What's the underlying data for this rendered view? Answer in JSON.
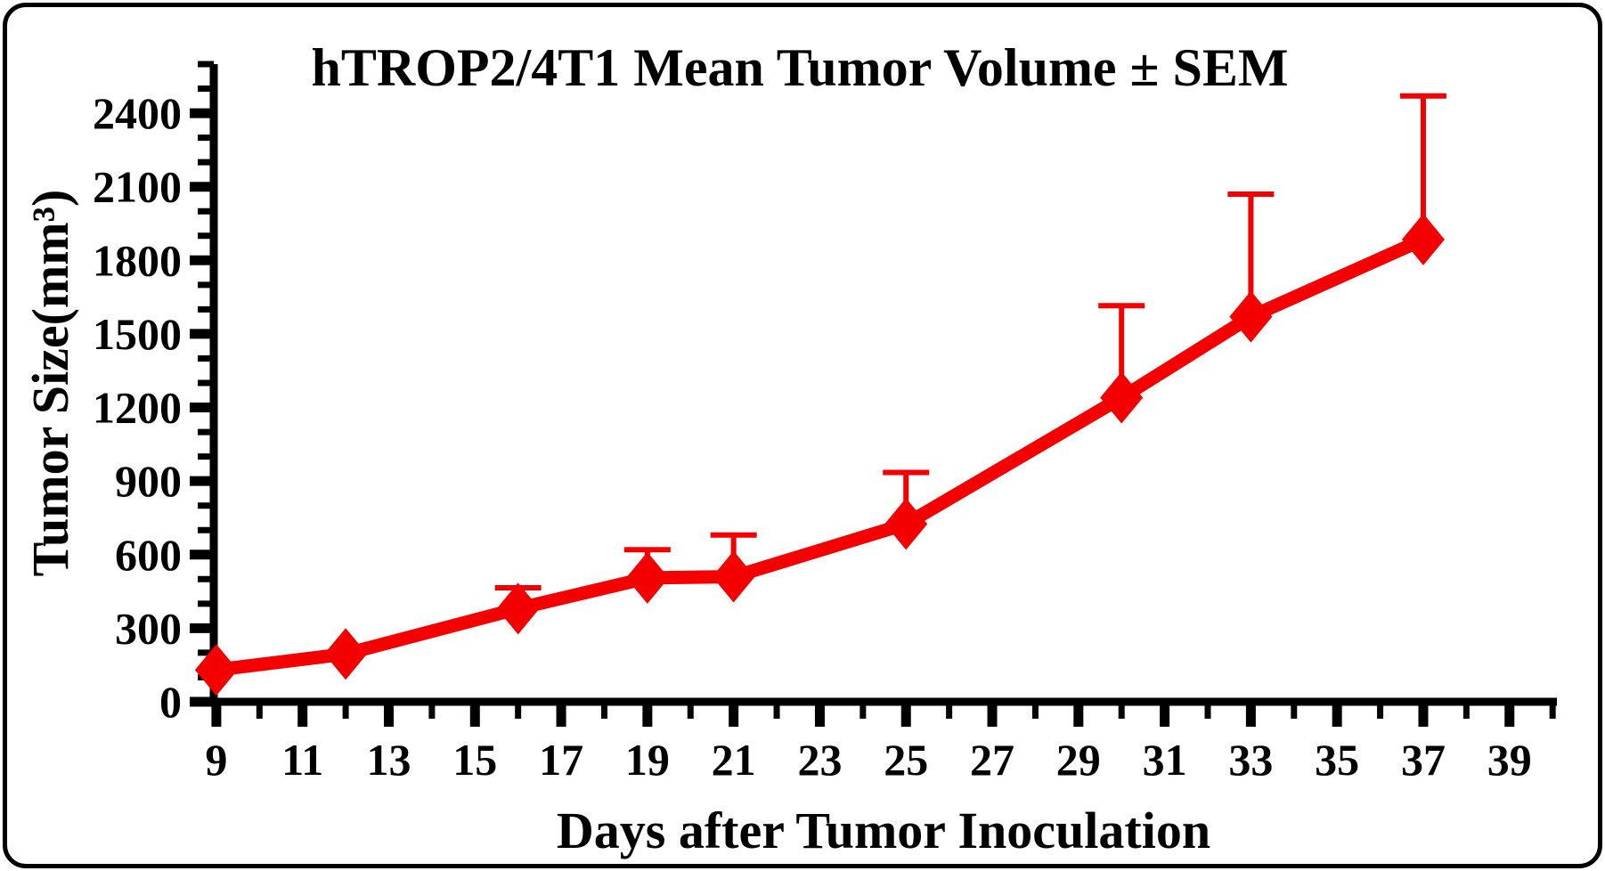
{
  "chart_data": {
    "type": "line",
    "title": "hTROP2/4T1 Mean Tumor Volume ± SEM",
    "xlabel": "Days after Tumor Inoculation",
    "ylabel": "Tumor Size(mm³)",
    "x": [
      9,
      12,
      16,
      19,
      21,
      25,
      30,
      33,
      37
    ],
    "series": [
      {
        "name": "hTROP2/4T1 mean tumor volume",
        "values": [
          130,
          195,
          380,
          505,
          510,
          725,
          1240,
          1570,
          1885
        ],
        "sem_upper": [
          0,
          0,
          85,
          115,
          170,
          210,
          375,
          500,
          585
        ]
      }
    ],
    "x_tick_labels": [
      9,
      11,
      13,
      15,
      17,
      19,
      21,
      23,
      25,
      27,
      29,
      31,
      33,
      35,
      37,
      39
    ],
    "y_tick_labels": [
      0,
      300,
      600,
      900,
      1200,
      1500,
      1800,
      2100,
      2400
    ],
    "x_minor_step": 1,
    "y_minor_step": 100,
    "xlim": [
      8.94,
      40.1
    ],
    "ylim": [
      0,
      2600
    ],
    "grid": false,
    "legend": false,
    "marker": "diamond",
    "error_bars": "upper-only",
    "colors": {
      "series": "#f50000",
      "axis": "#000000",
      "text": "#000000",
      "background": "#ffffff"
    }
  }
}
